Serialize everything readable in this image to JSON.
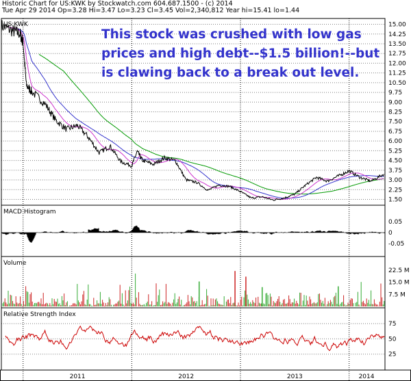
{
  "header": {
    "line1": "Historic Chart for US:KWK by Stockwatch.com 604.687.1500 - (c) 2014",
    "line2": "Tue Apr 29 2014   Op=3.28  Hi=3.47  Lo=3.23  Cl=3.45  Vol=2,340,812  Year hi=15.41  lo=1.44"
  },
  "chart_data": [
    {
      "type": "line",
      "panel": "price",
      "title": "US:KWK",
      "annotation": [
        "This stock was crushed with low gas",
        "prices and high debt--$1.5 billion!--but",
        "is clawing back to a break out level."
      ],
      "y_ticks": [
        "15.00",
        "14.25",
        "13.50",
        "12.75",
        "12.00",
        "11.25",
        "10.50",
        "9.75",
        "9.00",
        "8.25",
        "7.50",
        "6.75",
        "6.00",
        "5.25",
        "4.50",
        "3.75",
        "3.00",
        "2.25",
        "1.50"
      ],
      "ylim": [
        1.05,
        15.45
      ],
      "x": [
        2010.8,
        2010.9,
        2010.97,
        2011.0,
        2011.03,
        2011.08,
        2011.2,
        2011.3,
        2011.4,
        2011.5,
        2011.6,
        2011.7,
        2011.8,
        2011.9,
        2012.0,
        2012.05,
        2012.1,
        2012.2,
        2012.3,
        2012.4,
        2012.5,
        2012.6,
        2012.7,
        2012.8,
        2012.9,
        2013.0,
        2013.1,
        2013.2,
        2013.3,
        2013.4,
        2013.5,
        2013.6,
        2013.7,
        2013.8,
        2013.9,
        2014.0,
        2014.1,
        2014.2,
        2014.32
      ],
      "series": [
        {
          "values": [
            14.9,
            14.5,
            14.3,
            13.6,
            10.3,
            9.8,
            8.9,
            7.6,
            6.9,
            7.2,
            6.3,
            5.1,
            5.6,
            4.4,
            4.1,
            5.2,
            4.5,
            4.2,
            4.7,
            4.5,
            3.0,
            2.8,
            2.2,
            2.6,
            2.5,
            2.1,
            1.6,
            1.7,
            1.45,
            1.6,
            1.9,
            2.6,
            3.2,
            2.9,
            3.3,
            3.7,
            3.2,
            2.9,
            3.45
          ]
        }
      ],
      "moving_averages_colors": [
        "#3333cc",
        "#cc33cc",
        "#009900"
      ]
    },
    {
      "type": "bar",
      "panel": "macd",
      "title": "MACD Histogram",
      "y_ticks": [
        "0.05",
        "0",
        "-0.05"
      ]
    },
    {
      "type": "bar",
      "panel": "volume",
      "title": "Volume",
      "y_ticks": [
        "22.5 M",
        "15.0 M",
        "7.5 M"
      ]
    },
    {
      "type": "line",
      "panel": "rsi",
      "title": "Relative Strength Index",
      "y_ticks": [
        "75",
        "50",
        "25"
      ]
    }
  ],
  "x_axis": {
    "labels": [
      "2011",
      "2012",
      "2013",
      "2014"
    ]
  },
  "colors": {
    "price": "#000000",
    "ma_fast": "#3333cc",
    "ma_mid": "#cc33cc",
    "ma_slow": "#009900",
    "volume_up": "#33aa33",
    "volume_down": "#cc2222",
    "rsi": "#cc0000",
    "annotation": "#3333cc"
  }
}
